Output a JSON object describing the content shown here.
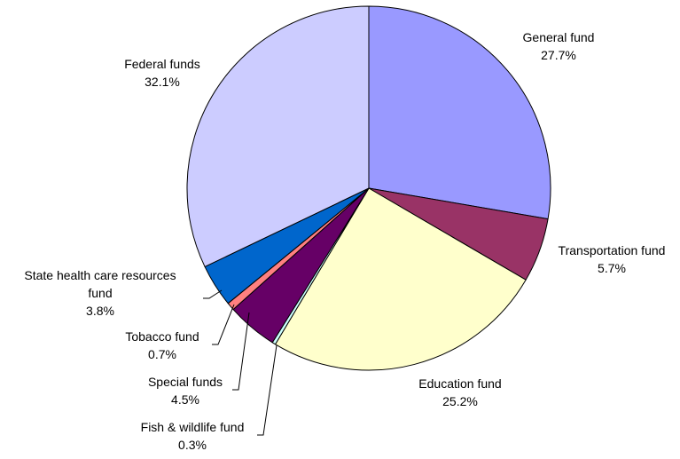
{
  "chart_data": {
    "type": "pie",
    "title": "",
    "slices": [
      {
        "name": "General fund",
        "label_lines": [
          "General fund"
        ],
        "pct_label": "27.7%",
        "value": 27.7,
        "color": "#9999ff"
      },
      {
        "name": "Transportation fund",
        "label_lines": [
          "Transportation fund"
        ],
        "pct_label": "5.7%",
        "value": 5.7,
        "color": "#993366"
      },
      {
        "name": "Education fund",
        "label_lines": [
          "Education fund"
        ],
        "pct_label": "25.2%",
        "value": 25.2,
        "color": "#ffffcc"
      },
      {
        "name": "Fish & wildlife fund",
        "label_lines": [
          "Fish & wildlife fund"
        ],
        "pct_label": "0.3%",
        "value": 0.3,
        "color": "#ccffff"
      },
      {
        "name": "Special funds",
        "label_lines": [
          "Special funds"
        ],
        "pct_label": "4.5%",
        "value": 4.5,
        "color": "#660066"
      },
      {
        "name": "Tobacco fund",
        "label_lines": [
          "Tobacco fund"
        ],
        "pct_label": "0.7%",
        "value": 0.7,
        "color": "#ff8080"
      },
      {
        "name": "State health care resources fund",
        "label_lines": [
          "State health care resources",
          "fund"
        ],
        "pct_label": "3.8%",
        "value": 3.8,
        "color": "#0066cc"
      },
      {
        "name": "Federal funds",
        "label_lines": [
          "Federal funds"
        ],
        "pct_label": "32.1%",
        "value": 32.1,
        "color": "#ccccff"
      }
    ],
    "start_angle": "12 o'clock",
    "direction": "clockwise",
    "legend": "none"
  }
}
